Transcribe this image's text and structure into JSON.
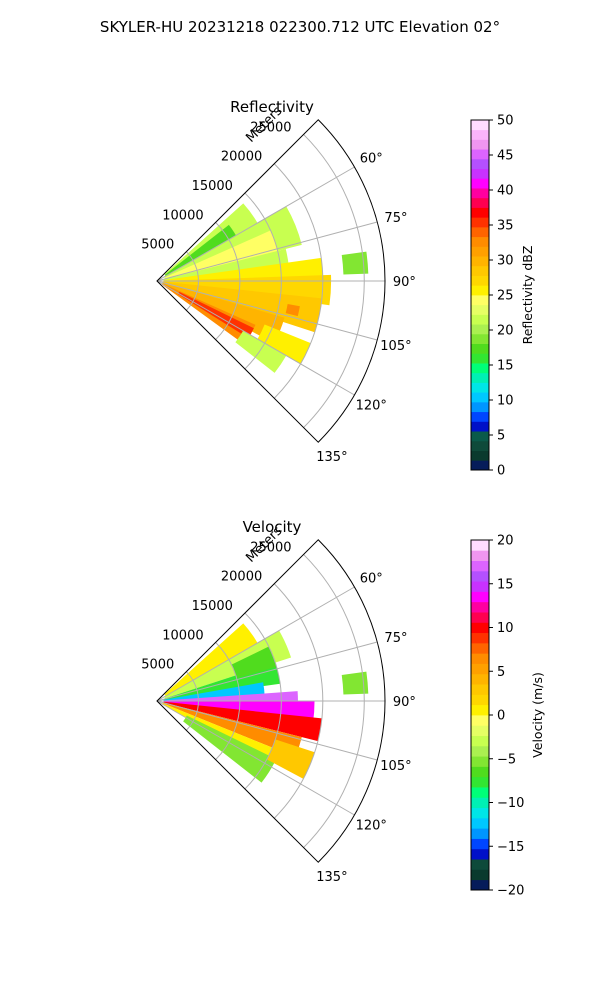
{
  "suptitle": "SKYLER-HU  20231218  022300.712 UTC Elevation 02°",
  "chart_data": [
    {
      "type": "heatmap",
      "projection": "polar-sector",
      "title": "Reflectivity",
      "range_label": "Meters",
      "theta_range_deg": [
        45,
        135
      ],
      "r_range_m": [
        0,
        27500
      ],
      "theta_ticks_deg": [
        60,
        75,
        90,
        105,
        120,
        135
      ],
      "theta_tick_labels": [
        "60°",
        "75°",
        "90°",
        "105°",
        "120°",
        "135°"
      ],
      "r_ticks_m": [
        5000,
        10000,
        15000,
        20000,
        25000
      ],
      "r_tick_labels": [
        "5000",
        "10000",
        "15000",
        "20000",
        "25000"
      ],
      "grid": true,
      "colorbar": {
        "label": "Reflectivity dBZ",
        "range": [
          0,
          50
        ],
        "ticks": [
          0,
          5,
          10,
          15,
          20,
          25,
          30,
          35,
          40,
          45,
          50
        ],
        "tick_labels": [
          "0",
          "5",
          "10",
          "15",
          "20",
          "25",
          "30",
          "35",
          "40",
          "45",
          "50"
        ],
        "colors": [
          "#061c5a",
          "#0a3a2e",
          "#0e4a3a",
          "#0a5a4a",
          "#0010c8",
          "#0046ff",
          "#0096ff",
          "#00c8ff",
          "#00e6e6",
          "#00f0b4",
          "#00ff78",
          "#32e632",
          "#50dc1e",
          "#82e632",
          "#aaf050",
          "#c8ff50",
          "#e6ff64",
          "#ffff64",
          "#fff000",
          "#ffd700",
          "#ffc800",
          "#ffb400",
          "#ffa000",
          "#ff8c00",
          "#ff6400",
          "#ff3200",
          "#ff0000",
          "#ff0050",
          "#ff00a0",
          "#ff00ff",
          "#c832ff",
          "#b450ff",
          "#dc64ff",
          "#f096f0",
          "#fab4fa",
          "#ffdcff"
        ]
      },
      "sectors": [
        {
          "theta": [
            48,
            60
          ],
          "r": [
            1200,
            14000
          ],
          "value": 21
        },
        {
          "theta": [
            52,
            64
          ],
          "r": [
            1200,
            11000
          ],
          "value": 17
        },
        {
          "theta": [
            60,
            76
          ],
          "r": [
            1000,
            18000
          ],
          "value": 21
        },
        {
          "theta": [
            66,
            80
          ],
          "r": [
            1000,
            15000
          ],
          "value": 24
        },
        {
          "theta": [
            76,
            88
          ],
          "r": [
            800,
            16000
          ],
          "value": 22
        },
        {
          "theta": [
            82,
            92
          ],
          "r": [
            800,
            20000
          ],
          "value": 25
        },
        {
          "theta": [
            88,
            98
          ],
          "r": [
            800,
            21000
          ],
          "value": 27
        },
        {
          "theta": [
            96,
            108
          ],
          "r": [
            700,
            20000
          ],
          "value": 28
        },
        {
          "theta": [
            106,
            118
          ],
          "r": [
            700,
            16000
          ],
          "value": 30
        },
        {
          "theta": [
            114,
            126
          ],
          "r": [
            700,
            13000
          ],
          "value": 33
        },
        {
          "theta": [
            116,
            122
          ],
          "r": [
            3000,
            13000
          ],
          "value": 36
        },
        {
          "theta": [
            112,
            120
          ],
          "r": [
            14000,
            20000
          ],
          "value": 26
        },
        {
          "theta": [
            120,
            128
          ],
          "r": [
            12000,
            18000
          ],
          "value": 22
        },
        {
          "theta": [
            82,
            88
          ],
          "r": [
            22500,
            25500
          ],
          "value": 19
        },
        {
          "theta": [
            100,
            104
          ],
          "r": [
            16000,
            17500
          ],
          "value": 33
        }
      ]
    },
    {
      "type": "heatmap",
      "projection": "polar-sector",
      "title": "Velocity",
      "range_label": "Meters",
      "theta_range_deg": [
        45,
        135
      ],
      "r_range_m": [
        0,
        27500
      ],
      "theta_ticks_deg": [
        60,
        75,
        90,
        105,
        120,
        135
      ],
      "theta_tick_labels": [
        "60°",
        "75°",
        "90°",
        "105°",
        "120°",
        "135°"
      ],
      "r_ticks_m": [
        5000,
        10000,
        15000,
        20000,
        25000
      ],
      "r_tick_labels": [
        "5000",
        "10000",
        "15000",
        "20000",
        "25000"
      ],
      "grid": true,
      "colorbar": {
        "label": "Velocity (m/s)",
        "range": [
          -20,
          20
        ],
        "ticks": [
          -20,
          -15,
          -10,
          -5,
          0,
          5,
          10,
          15,
          20
        ],
        "tick_labels": [
          "−20",
          "−15",
          "−10",
          "−5",
          "0",
          "5",
          "10",
          "15",
          "20"
        ],
        "colors": [
          "#061c5a",
          "#0a3a2e",
          "#0e4a3a",
          "#0010c8",
          "#0046ff",
          "#0096ff",
          "#00c8ff",
          "#00e6e6",
          "#00f0b4",
          "#00ff78",
          "#32e632",
          "#50dc1e",
          "#82e632",
          "#aaf050",
          "#c8ff50",
          "#e6ff64",
          "#ffff64",
          "#fff000",
          "#ffd700",
          "#ffc800",
          "#ffb400",
          "#ffa000",
          "#ff8c00",
          "#ff6400",
          "#ff3200",
          "#ff0000",
          "#ff0050",
          "#ff00a0",
          "#ff00ff",
          "#c832ff",
          "#b450ff",
          "#dc64ff",
          "#f096f0",
          "#ffdcff"
        ]
      },
      "sectors": [
        {
          "theta": [
            48,
            60
          ],
          "r": [
            1200,
            14000
          ],
          "value": 0
        },
        {
          "theta": [
            60,
            72
          ],
          "r": [
            1000,
            17000
          ],
          "value": -3
        },
        {
          "theta": [
            72,
            82
          ],
          "r": [
            800,
            15000
          ],
          "value": -8
        },
        {
          "theta": [
            80,
            88
          ],
          "r": [
            800,
            13000
          ],
          "value": -12
        },
        {
          "theta": [
            86,
            92
          ],
          "r": [
            800,
            17000
          ],
          "value": 17
        },
        {
          "theta": [
            90,
            98
          ],
          "r": [
            800,
            19000
          ],
          "value": 13
        },
        {
          "theta": [
            96,
            104
          ],
          "r": [
            800,
            20000
          ],
          "value": 10
        },
        {
          "theta": [
            104,
            112
          ],
          "r": [
            700,
            18000
          ],
          "value": 6
        },
        {
          "theta": [
            112,
            120
          ],
          "r": [
            700,
            15000
          ],
          "value": 1
        },
        {
          "theta": [
            116,
            128
          ],
          "r": [
            4000,
            16000
          ],
          "value": -5
        },
        {
          "theta": [
            108,
            118
          ],
          "r": [
            15000,
            20000
          ],
          "value": 3
        },
        {
          "theta": [
            82,
            88
          ],
          "r": [
            22500,
            25500
          ],
          "value": -5
        },
        {
          "theta": [
            64,
            74
          ],
          "r": [
            10000,
            15000
          ],
          "value": -6
        }
      ]
    }
  ]
}
